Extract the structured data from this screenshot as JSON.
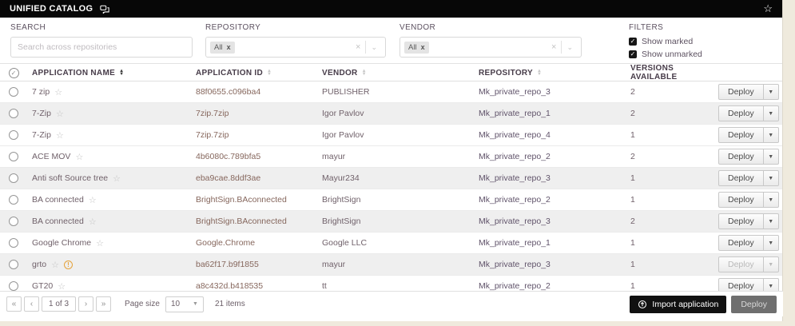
{
  "titlebar": {
    "title": "UNIFIED CATALOG",
    "star_icon": "☆"
  },
  "filters_bar": {
    "search": {
      "label": "SEARCH",
      "placeholder": "Search across repositories"
    },
    "repository": {
      "label": "REPOSITORY",
      "selected_chip": "All"
    },
    "vendor": {
      "label": "VENDOR",
      "selected_chip": "All"
    },
    "filters": {
      "label": "FILTERS",
      "options": [
        {
          "label": "Show marked",
          "checked": true
        },
        {
          "label": "Show unmarked",
          "checked": true
        }
      ]
    }
  },
  "table": {
    "columns": {
      "name": "APPLICATION NAME",
      "id": "APPLICATION ID",
      "vendor": "VENDOR",
      "repository": "REPOSITORY",
      "versions": "VERSIONS AVAILABLE"
    },
    "deploy_label": "Deploy",
    "rows": [
      {
        "name": "7 zip",
        "id": "88f0655.c096ba4",
        "vendor": "PUBLISHER",
        "repository": "Mk_private_repo_3",
        "versions": "2",
        "shaded": false,
        "warning": false,
        "deploy_disabled": false
      },
      {
        "name": "7-Zip",
        "id": "7zip.7zip",
        "vendor": "Igor Pavlov",
        "repository": "Mk_private_repo_1",
        "versions": "2",
        "shaded": true,
        "warning": false,
        "deploy_disabled": false
      },
      {
        "name": "7-Zip",
        "id": "7zip.7zip",
        "vendor": "Igor Pavlov",
        "repository": "Mk_private_repo_4",
        "versions": "1",
        "shaded": false,
        "warning": false,
        "deploy_disabled": false
      },
      {
        "name": "ACE MOV",
        "id": "4b6080c.789bfa5",
        "vendor": "mayur",
        "repository": "Mk_private_repo_2",
        "versions": "2",
        "shaded": false,
        "warning": false,
        "deploy_disabled": false
      },
      {
        "name": "Anti soft Source tree",
        "id": "eba9cae.8ddf3ae",
        "vendor": "Mayur234",
        "repository": "Mk_private_repo_3",
        "versions": "1",
        "shaded": true,
        "warning": false,
        "deploy_disabled": false
      },
      {
        "name": "BA connected",
        "id": "BrightSign.BAconnected",
        "vendor": "BrightSign",
        "repository": "Mk_private_repo_2",
        "versions": "1",
        "shaded": false,
        "warning": false,
        "deploy_disabled": false
      },
      {
        "name": "BA connected",
        "id": "BrightSign.BAconnected",
        "vendor": "BrightSign",
        "repository": "Mk_private_repo_3",
        "versions": "2",
        "shaded": true,
        "warning": false,
        "deploy_disabled": false
      },
      {
        "name": "Google Chrome",
        "id": "Google.Chrome",
        "vendor": "Google LLC",
        "repository": "Mk_private_repo_1",
        "versions": "1",
        "shaded": false,
        "warning": false,
        "deploy_disabled": false
      },
      {
        "name": "grto",
        "id": "ba62f17.b9f1855",
        "vendor": "mayur",
        "repository": "Mk_private_repo_3",
        "versions": "1",
        "shaded": true,
        "warning": true,
        "deploy_disabled": true
      },
      {
        "name": "GT20",
        "id": "a8c432d.b418535",
        "vendor": "tt",
        "repository": "Mk_private_repo_2",
        "versions": "1",
        "shaded": false,
        "warning": false,
        "deploy_disabled": false
      }
    ]
  },
  "footer": {
    "pager": {
      "first": "«",
      "prev": "‹",
      "status": "1 of 3",
      "next": "›",
      "last": "»"
    },
    "page_size_label": "Page size",
    "page_size_value": "10",
    "items_count": "21 items",
    "import_label": "Import application",
    "deploy_label": "Deploy"
  }
}
